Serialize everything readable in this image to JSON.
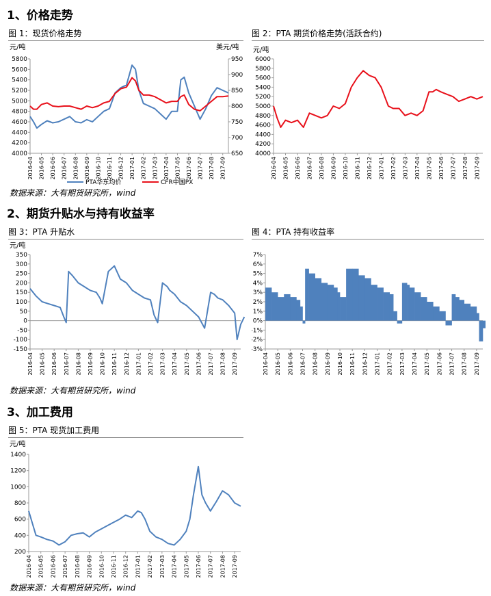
{
  "sections": {
    "s1": "1、价格走势",
    "s2": "2、期货升贴水与持有收益率",
    "s3": "3、加工费用"
  },
  "source": "数据来源：大有期货研究所，wind",
  "months": [
    "2016-04",
    "2016-05",
    "2016-06",
    "2016-07",
    "2016-08",
    "2016-09",
    "2016-10",
    "2016-11",
    "2016-12",
    "2017-01",
    "2017-02",
    "2017-03",
    "2017-04",
    "2017-05",
    "2017-06",
    "2017-07",
    "2017-08",
    "2017-09"
  ],
  "colors": {
    "blue": "#4f81bd",
    "red": "#e8101a"
  },
  "chart_data": [
    {
      "id": "fig1",
      "caption": "图 1：现货价格走势",
      "type": "line",
      "ylabel_left": "元/吨",
      "ylabel_right": "美元/吨",
      "ylim_left": [
        4000,
        5800
      ],
      "ylim_right": [
        650,
        950
      ],
      "yticks_left": [
        "4000",
        "4200",
        "4400",
        "4600",
        "4800",
        "5000",
        "5200",
        "5400",
        "5600",
        "5800"
      ],
      "yticks_right": [
        "650",
        "700",
        "750",
        "800",
        "850",
        "900",
        "950"
      ],
      "series": [
        {
          "name": "PTA华东均价",
          "axis": "left",
          "color": "#4f81bd",
          "x": [
            0,
            0.3,
            0.6,
            1.0,
            1.5,
            2.0,
            2.5,
            3.0,
            3.5,
            4.0,
            4.5,
            5.0,
            5.5,
            6.0,
            6.5,
            7.0,
            7.5,
            8.0,
            8.5,
            9.0,
            9.3,
            9.6,
            10.0,
            10.5,
            11.0,
            11.5,
            12.0,
            12.5,
            13.0,
            13.3,
            13.6,
            14.0,
            14.5,
            15.0,
            15.5,
            16.0,
            16.5,
            17.0,
            17.5
          ],
          "y": [
            4700,
            4600,
            4480,
            4550,
            4620,
            4580,
            4600,
            4650,
            4700,
            4600,
            4580,
            4640,
            4600,
            4700,
            4800,
            4850,
            5150,
            5250,
            5300,
            5680,
            5600,
            5200,
            4950,
            4900,
            4850,
            4750,
            4650,
            4800,
            4800,
            5400,
            5450,
            5150,
            4900,
            4650,
            4850,
            5100,
            5250,
            5200,
            5150
          ]
        },
        {
          "name": "CFR中国PX",
          "axis": "right",
          "color": "#e8101a",
          "x": [
            0,
            0.3,
            0.6,
            1.0,
            1.5,
            2.0,
            2.5,
            3.0,
            3.5,
            4.0,
            4.5,
            5.0,
            5.5,
            6.0,
            6.5,
            7.0,
            7.5,
            8.0,
            8.5,
            9.0,
            9.3,
            9.6,
            10.0,
            10.5,
            11.0,
            11.5,
            12.0,
            12.5,
            13.0,
            13.3,
            13.6,
            14.0,
            14.5,
            15.0,
            15.5,
            16.0,
            16.5,
            17.0,
            17.5
          ],
          "y": [
            800,
            790,
            790,
            805,
            810,
            800,
            798,
            800,
            800,
            795,
            790,
            800,
            795,
            800,
            810,
            815,
            840,
            855,
            860,
            890,
            880,
            850,
            835,
            835,
            830,
            820,
            810,
            815,
            815,
            830,
            835,
            805,
            790,
            785,
            800,
            815,
            830,
            830,
            832
          ]
        }
      ]
    },
    {
      "id": "fig2",
      "caption": "图 2：PTA 期货价格走势(活跃合约)",
      "type": "line",
      "ylabel": "元/吨",
      "ylim": [
        4000,
        6000
      ],
      "yticks": [
        "4000",
        "4200",
        "4400",
        "4600",
        "4800",
        "5000",
        "5200",
        "5400",
        "5600",
        "5800",
        "6000"
      ],
      "series": [
        {
          "name": "PTA期货活跃合约",
          "color": "#e8101a",
          "x": [
            0,
            0.3,
            0.6,
            1.0,
            1.5,
            2.0,
            2.5,
            3.0,
            3.5,
            4.0,
            4.5,
            5.0,
            5.5,
            6.0,
            6.5,
            7.0,
            7.5,
            8.0,
            8.5,
            9.0,
            9.3,
            9.6,
            10.0,
            10.5,
            11.0,
            11.5,
            12.0,
            12.5,
            13.0,
            13.3,
            13.6,
            14.0,
            14.5,
            15.0,
            15.5,
            16.0,
            16.5,
            17.0,
            17.5
          ],
          "y": [
            5000,
            4750,
            4550,
            4700,
            4650,
            4700,
            4550,
            4850,
            4800,
            4750,
            4800,
            5000,
            4950,
            5050,
            5400,
            5600,
            5750,
            5650,
            5600,
            5400,
            5200,
            5000,
            4950,
            4950,
            4800,
            4850,
            4800,
            4900,
            5300,
            5300,
            5350,
            5300,
            5250,
            5200,
            5100,
            5150,
            5200,
            5150,
            5200
          ]
        }
      ]
    },
    {
      "id": "fig3",
      "caption": "图 3：PTA 升贴水",
      "type": "line",
      "ylabel": "元/吨",
      "ylim": [
        -150,
        350
      ],
      "yticks": [
        "-150",
        "-100",
        "-50",
        "0",
        "50",
        "100",
        "150",
        "200",
        "250",
        "300",
        "350"
      ],
      "series": [
        {
          "name": "PTA升贴水",
          "color": "#4f81bd",
          "x": [
            0,
            0.5,
            1.0,
            1.5,
            2.0,
            2.5,
            2.8,
            3.0,
            3.2,
            3.5,
            4.0,
            4.5,
            5.0,
            5.5,
            5.8,
            6.0,
            6.5,
            7.0,
            7.5,
            8.0,
            8.5,
            9.0,
            9.5,
            10.0,
            10.3,
            10.6,
            11.0,
            11.4,
            11.6,
            12.0,
            12.5,
            13.0,
            13.5,
            14.0,
            14.5,
            15.0,
            15.3,
            15.6,
            16.0,
            16.5,
            17.0,
            17.2,
            17.5,
            17.8
          ],
          "y": [
            170,
            130,
            100,
            90,
            80,
            70,
            20,
            -10,
            260,
            240,
            200,
            180,
            160,
            150,
            120,
            90,
            260,
            290,
            220,
            200,
            160,
            140,
            120,
            110,
            30,
            -10,
            200,
            180,
            160,
            140,
            100,
            80,
            50,
            20,
            -40,
            150,
            140,
            120,
            110,
            80,
            40,
            -100,
            -20,
            20
          ]
        }
      ]
    },
    {
      "id": "fig4",
      "caption": "图 4：PTA 持有收益率",
      "type": "bar",
      "ylabel": "",
      "ylim": [
        -3,
        7
      ],
      "yticks": [
        "-3%",
        "-2%",
        "-1%",
        "0%",
        "1%",
        "2%",
        "3%",
        "4%",
        "5%",
        "6%",
        "7%"
      ],
      "series": [
        {
          "name": "PTA持有收益率(%)",
          "color": "#4f81bd",
          "x": [
            0,
            0.5,
            1.0,
            1.5,
            2.0,
            2.5,
            2.8,
            3.0,
            3.2,
            3.5,
            4.0,
            4.5,
            5.0,
            5.5,
            5.8,
            6.0,
            6.5,
            7.0,
            7.5,
            8.0,
            8.5,
            9.0,
            9.5,
            10.0,
            10.3,
            10.6,
            11.0,
            11.4,
            11.6,
            12.0,
            12.5,
            13.0,
            13.5,
            14.0,
            14.5,
            15.0,
            15.3,
            15.6,
            16.0,
            16.5,
            17.0,
            17.2,
            17.5,
            17.8
          ],
          "y": [
            3.5,
            3.0,
            2.5,
            2.8,
            2.5,
            2.2,
            1.5,
            -0.3,
            5.5,
            5.0,
            4.5,
            4.0,
            3.8,
            3.5,
            3.0,
            2.5,
            5.5,
            5.5,
            4.8,
            4.5,
            3.8,
            3.5,
            3.0,
            2.8,
            1.0,
            -0.3,
            4.0,
            3.8,
            3.5,
            3.0,
            2.5,
            2.0,
            1.5,
            1.0,
            -0.5,
            2.8,
            2.5,
            2.2,
            1.8,
            1.5,
            0.8,
            -2.2,
            -0.8,
            0.4
          ]
        }
      ]
    },
    {
      "id": "fig5",
      "caption": "图 5：PTA 现货加工费用",
      "type": "line",
      "ylabel": "元/吨",
      "ylim": [
        200,
        1400
      ],
      "yticks": [
        "200",
        "400",
        "600",
        "800",
        "1000",
        "1200",
        "1400"
      ],
      "series": [
        {
          "name": "PTA现货加工费用",
          "color": "#4f81bd",
          "x": [
            0,
            0.3,
            0.6,
            1.0,
            1.5,
            2.0,
            2.5,
            3.0,
            3.5,
            4.0,
            4.5,
            5.0,
            5.5,
            6.0,
            6.5,
            7.0,
            7.5,
            8.0,
            8.5,
            9.0,
            9.3,
            9.6,
            10.0,
            10.5,
            11.0,
            11.5,
            12.0,
            12.5,
            13.0,
            13.3,
            13.6,
            14.0,
            14.3,
            14.6,
            15.0,
            15.5,
            16.0,
            16.5,
            17.0,
            17.5
          ],
          "y": [
            700,
            550,
            400,
            380,
            350,
            330,
            280,
            320,
            400,
            420,
            430,
            380,
            440,
            480,
            520,
            560,
            600,
            650,
            620,
            700,
            680,
            600,
            450,
            380,
            350,
            300,
            280,
            350,
            450,
            600,
            900,
            1250,
            900,
            800,
            700,
            820,
            950,
            900,
            800,
            760
          ]
        }
      ]
    }
  ]
}
